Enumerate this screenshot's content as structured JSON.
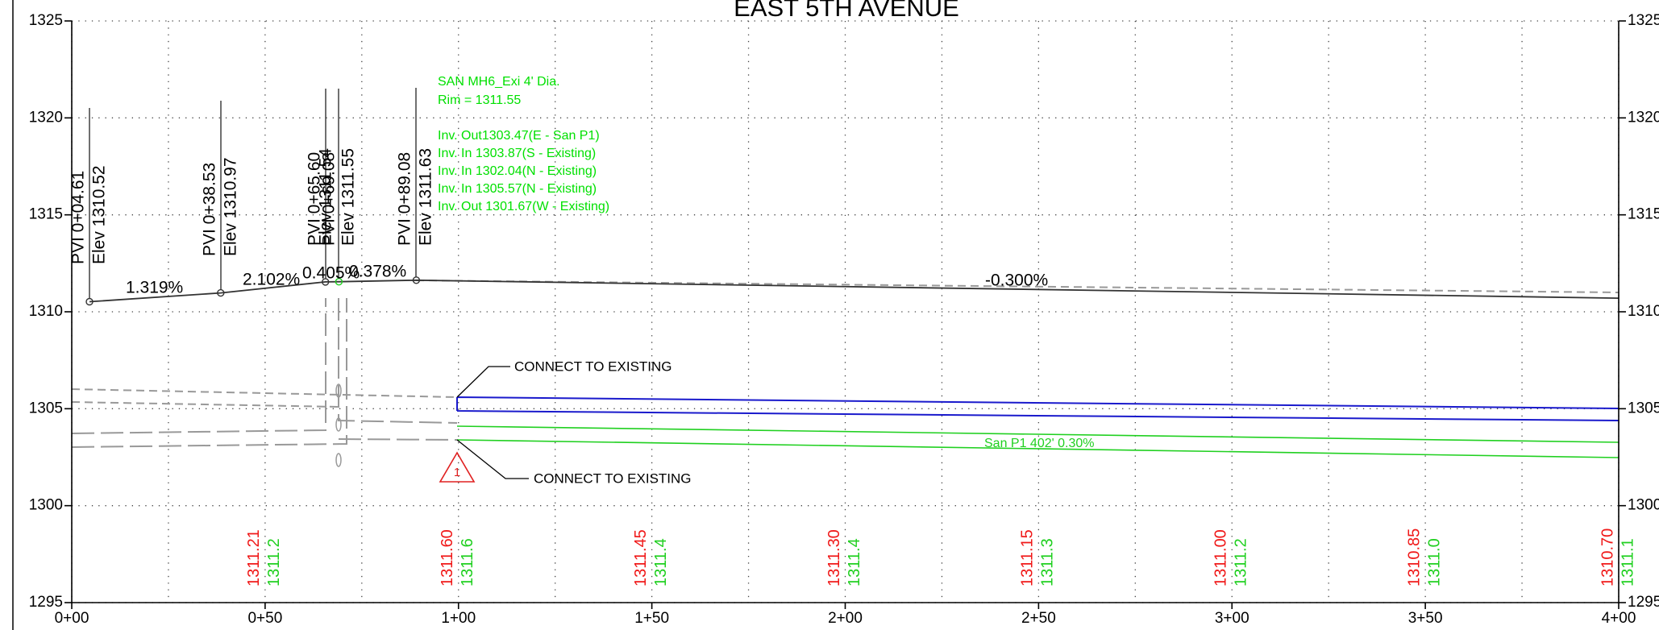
{
  "title": "EAST 5TH AVENUE",
  "axis": {
    "yticks": [
      1295,
      1300,
      1305,
      1310,
      1315,
      1320,
      1325
    ],
    "xticks": [
      {
        "value": 0,
        "label": "0+00"
      },
      {
        "value": 50,
        "label": "0+50"
      },
      {
        "value": 100,
        "label": "1+00"
      },
      {
        "value": 150,
        "label": "1+50"
      },
      {
        "value": 200,
        "label": "2+00"
      },
      {
        "value": 250,
        "label": "2+50"
      },
      {
        "value": 300,
        "label": "3+00"
      },
      {
        "value": 350,
        "label": "3+50"
      },
      {
        "value": 400,
        "label": "4+00"
      }
    ]
  },
  "pvis": [
    {
      "station": "PVI 0+04.61",
      "elevation": "Elev 1310.52"
    },
    {
      "station": "PVI 0+38.53",
      "elevation": "Elev 1310.97"
    },
    {
      "station": "PVI 0+65.60",
      "elevation": "Elev 1311.54"
    },
    {
      "station": "PVI 0+69.08",
      "elevation": "Elev 1311.55"
    },
    {
      "station": "PVI 0+89.08",
      "elevation": "Elev 1311.63"
    }
  ],
  "grades": [
    "1.319%",
    "2.102%",
    "0.405%",
    "0.378%",
    "-0.300%"
  ],
  "manhole": {
    "name": "SAN MH6_Exi  4' Dia.",
    "rim": "Rim = 1311.55",
    "inverts": [
      "Inv. Out1303.47(E - San P1)",
      "Inv. In 1303.87(S - Existing)",
      "Inv. In 1302.04(N - Existing)",
      "Inv. In 1305.57(N - Existing)",
      "Inv. Out 1301.67(W - Existing)"
    ]
  },
  "callouts": [
    "CONNECT TO EXISTING",
    "CONNECT TO EXISTING"
  ],
  "revision_tag": "1",
  "pipe_label": "San P1 402'  0.30%",
  "station_elevations": [
    {
      "existing": "1311.21",
      "proposed": "1311.2"
    },
    {
      "existing": "1311.60",
      "proposed": "1311.6"
    },
    {
      "existing": "1311.45",
      "proposed": "1311.4"
    },
    {
      "existing": "1311.30",
      "proposed": "1311.4"
    },
    {
      "existing": "1311.15",
      "proposed": "1311.3"
    },
    {
      "existing": "1311.00",
      "proposed": "1311.2"
    },
    {
      "existing": "1310.85",
      "proposed": "1311.0"
    },
    {
      "existing": "1310.70",
      "proposed": "1311.1"
    }
  ]
}
